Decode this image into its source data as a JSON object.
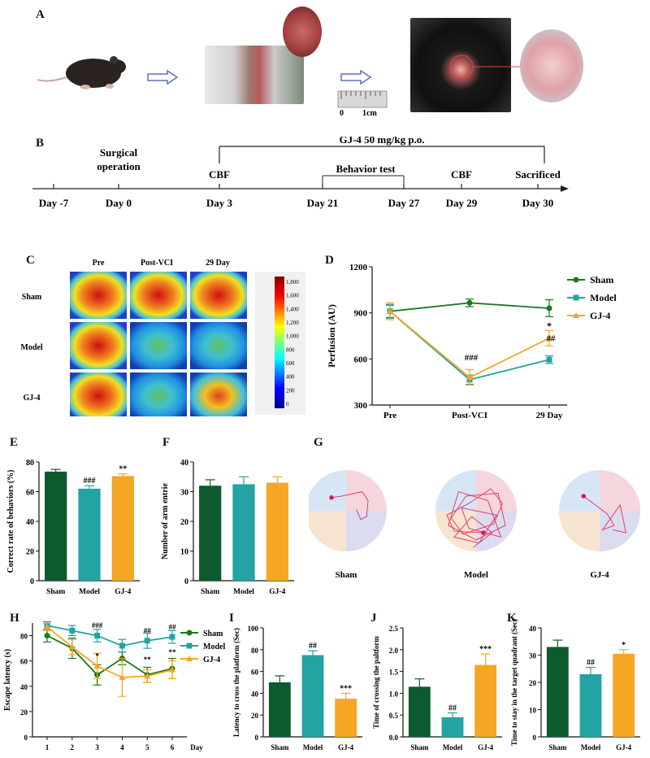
{
  "panels": {
    "A": "A",
    "B": "B",
    "C": "C",
    "D": "D",
    "E": "E",
    "F": "F",
    "G": "G",
    "H": "H",
    "I": "I",
    "J": "J",
    "K": "K"
  },
  "panel_a": {
    "scale_zero": "0",
    "scale_cm": "1cm"
  },
  "timeline": {
    "treatment": "GJ-4 50 mg/kg p.o.",
    "surgery_line1": "Surgical",
    "surgery_line2": "operation",
    "cbf1": "CBF",
    "behavior": "Behavior test",
    "cbf2": "CBF",
    "sacrificed": "Sacrificed",
    "days": [
      "Day -7",
      "Day 0",
      "Day 3",
      "Day 21",
      "Day 27",
      "Day 29",
      "Day 30"
    ]
  },
  "panel_c": {
    "cols": [
      "Pre",
      "Post-VCI",
      "29 Day"
    ],
    "rows": [
      "Sham",
      "Model",
      "GJ-4"
    ],
    "colorbar_ticks": [
      "1,800",
      "1,600",
      "1,400",
      "1,200",
      "1,000",
      "800",
      "600",
      "400",
      "200",
      "0"
    ]
  },
  "colors": {
    "sham": "#1a7a1a",
    "model": "#23a3a3",
    "gj4": "#f5a623",
    "sham_dark": "#0d5a2e"
  },
  "chart_data": [
    {
      "id": "D",
      "type": "line",
      "ylabel": "Perfusion (AU)",
      "categories": [
        "Pre",
        "Post-VCI",
        "29 Day"
      ],
      "ylim": [
        300,
        1200
      ],
      "yticks": [
        "300",
        "600",
        "900",
        "1200"
      ],
      "series": [
        {
          "name": "Sham",
          "values": [
            910,
            965,
            930
          ],
          "err": [
            40,
            25,
            55
          ]
        },
        {
          "name": "Model",
          "values": [
            910,
            465,
            595
          ],
          "err": [
            45,
            30,
            25
          ]
        },
        {
          "name": "GJ-4",
          "values": [
            910,
            480,
            735
          ],
          "err": [
            55,
            50,
            50
          ]
        }
      ],
      "annotations": [
        "###",
        "*",
        "##"
      ]
    },
    {
      "id": "E",
      "type": "bar",
      "ylabel": "Correct rate of behaviors (%)",
      "categories": [
        "Sham",
        "Model",
        "GJ-4"
      ],
      "values": [
        73.5,
        62,
        70.5
      ],
      "err": [
        1.5,
        2,
        1.5
      ],
      "ylim": [
        0,
        80
      ],
      "yticks": [
        "0",
        "20",
        "40",
        "60",
        "80"
      ],
      "annotations": [
        "",
        "###",
        "**"
      ]
    },
    {
      "id": "F",
      "type": "bar",
      "ylabel": "Number of arm entrie",
      "categories": [
        "Sham",
        "Model",
        "GJ-4"
      ],
      "values": [
        32,
        32.5,
        33
      ],
      "err": [
        2,
        2.5,
        2
      ],
      "ylim": [
        0,
        40
      ],
      "yticks": [
        "0",
        "10",
        "20",
        "30",
        "40"
      ]
    },
    {
      "id": "H",
      "type": "line",
      "ylabel": "Escape latency   (s)",
      "xlabel": "Day",
      "categories": [
        "1",
        "2",
        "3",
        "4",
        "5",
        "6"
      ],
      "ylim": [
        0,
        90
      ],
      "yticks": [
        "0",
        "20",
        "40",
        "60",
        "80"
      ],
      "series": [
        {
          "name": "Sham",
          "values": [
            80,
            70,
            49,
            62,
            49,
            54
          ],
          "err": [
            5,
            8,
            8,
            5,
            6,
            8
          ]
        },
        {
          "name": "Model",
          "values": [
            88,
            84,
            80,
            72,
            76,
            79
          ],
          "err": [
            3,
            4,
            5,
            5,
            6,
            5
          ]
        },
        {
          "name": "GJ-4",
          "values": [
            87,
            71,
            56,
            47,
            48,
            53
          ],
          "err": [
            3,
            6,
            10,
            15,
            5,
            7
          ]
        }
      ],
      "annotations": [
        "###",
        "*",
        "##",
        "**",
        "##",
        "**"
      ]
    },
    {
      "id": "I",
      "type": "bar",
      "ylabel": "Latency to cross the platform (Sec)",
      "categories": [
        "Sham",
        "Model",
        "GJ-4"
      ],
      "values": [
        50,
        75,
        35
      ],
      "err": [
        6,
        4,
        5
      ],
      "ylim": [
        0,
        100
      ],
      "yticks": [
        "0",
        "20",
        "40",
        "60",
        "80",
        "100"
      ],
      "annotations": [
        "",
        "##",
        "***"
      ]
    },
    {
      "id": "J",
      "type": "bar",
      "ylabel": "Time of crossing the paltform",
      "categories": [
        "Sham",
        "Model",
        "GJ-4"
      ],
      "values": [
        1.15,
        0.45,
        1.65
      ],
      "err": [
        0.18,
        0.1,
        0.25
      ],
      "ylim": [
        0,
        2.5
      ],
      "yticks": [
        "0.0",
        "0.5",
        "1.0",
        "1.5",
        "2.0",
        "2.5"
      ],
      "annotations": [
        "",
        "##",
        "***"
      ]
    },
    {
      "id": "K",
      "type": "bar",
      "ylabel": "Time to stay in the target quadrant (Sec)",
      "categories": [
        "Sham",
        "Model",
        "GJ-4"
      ],
      "values": [
        33,
        23,
        30.5
      ],
      "err": [
        2.5,
        2.5,
        1.5
      ],
      "ylim": [
        0,
        40
      ],
      "yticks": [
        "0",
        "10",
        "20",
        "30",
        "40"
      ],
      "annotations": [
        "",
        "##",
        "*"
      ]
    }
  ],
  "panel_g": {
    "labels": [
      "Sham",
      "Model",
      "GJ-4"
    ]
  }
}
